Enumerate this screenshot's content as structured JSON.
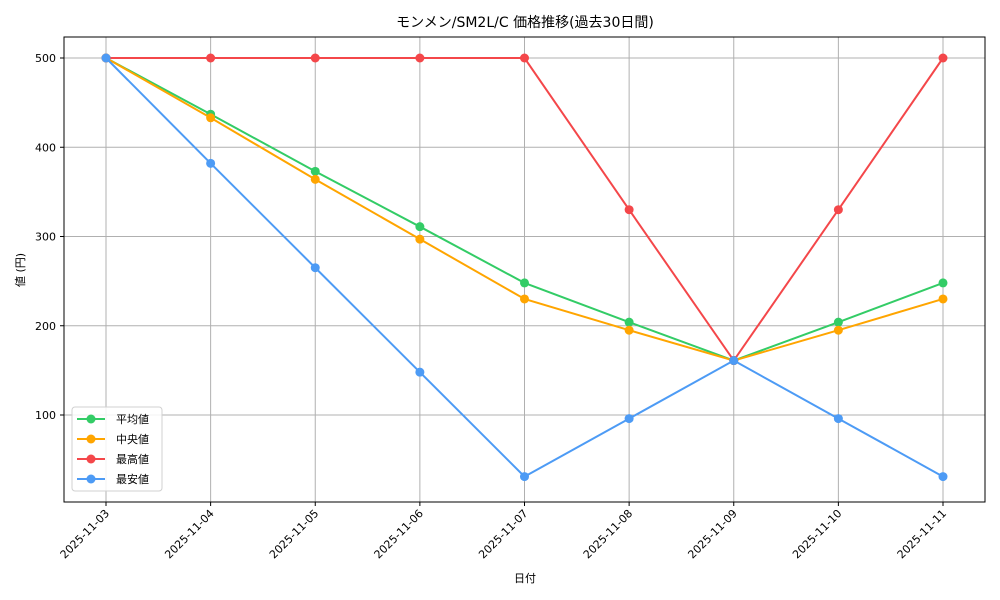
{
  "chart_data": {
    "type": "line",
    "title": "モンメン/SM2L/C 価格推移(過去30日間)",
    "xlabel": "日付",
    "ylabel": "値 (円)",
    "categories": [
      "2025-11-03",
      "2025-11-04",
      "2025-11-05",
      "2025-11-06",
      "2025-11-07",
      "2025-11-08",
      "2025-11-09",
      "2025-11-10",
      "2025-11-11"
    ],
    "yticks": [
      100,
      200,
      300,
      400,
      500
    ],
    "ylim": [
      7,
      526
    ],
    "grid": true,
    "legend_position": "lower left",
    "series": [
      {
        "name": "平均値",
        "color": "#33cc66",
        "values": [
          500,
          437,
          373,
          311,
          248,
          204,
          161,
          204,
          248
        ]
      },
      {
        "name": "中央値",
        "color": "#ffa500",
        "values": [
          500,
          433,
          364,
          297,
          230,
          195,
          161,
          195,
          230
        ]
      },
      {
        "name": "最高値",
        "color": "#f4474a",
        "values": [
          500,
          500,
          500,
          500,
          500,
          330,
          161,
          330,
          500
        ]
      },
      {
        "name": "最安値",
        "color": "#4d9bf5",
        "values": [
          500,
          382,
          265,
          148,
          31,
          96,
          161,
          96,
          31
        ]
      }
    ]
  }
}
